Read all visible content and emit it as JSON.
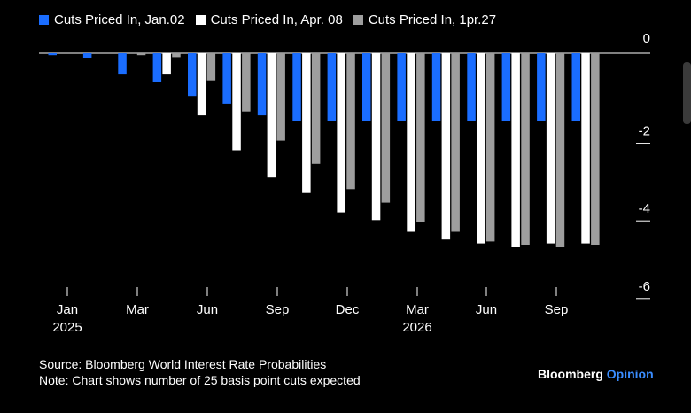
{
  "chart_data": {
    "type": "bar",
    "title": "",
    "xlabel": "",
    "ylabel": "",
    "ylim": [
      -6.2,
      0.4
    ],
    "y_ticks": [
      0,
      -2,
      -4,
      -6
    ],
    "y_tick_labels": [
      "0",
      "-2",
      "-4",
      "-6"
    ],
    "x_tick_labels": [
      {
        "month": "Jan",
        "year": "2025"
      },
      {
        "month": "Mar",
        "year": ""
      },
      {
        "month": "Jun",
        "year": ""
      },
      {
        "month": "Sep",
        "year": ""
      },
      {
        "month": "Dec",
        "year": ""
      },
      {
        "month": "Mar",
        "year": "2026"
      },
      {
        "month": "Jun",
        "year": ""
      },
      {
        "month": "Sep",
        "year": ""
      }
    ],
    "legend_placement": "top-left",
    "grid": false,
    "series": [
      {
        "name": "Cuts Priced In, Jan.02",
        "color": "#1a6dff",
        "values": [
          -0.05,
          -0.12,
          -0.55,
          -0.75,
          -1.1,
          -1.3,
          -1.6,
          -1.75,
          -1.75,
          -1.75,
          -1.75,
          -1.75,
          -1.75,
          -1.75,
          -1.75,
          -1.75
        ]
      },
      {
        "name": "Cuts Priced In, Apr. 08",
        "color": "#ffffff",
        "values": [
          0,
          0,
          0,
          -0.55,
          -1.6,
          -2.5,
          -3.2,
          -3.6,
          -4.1,
          -4.3,
          -4.6,
          -4.8,
          -4.9,
          -5.0,
          -4.9,
          -4.9
        ]
      },
      {
        "name": "Cuts Priced In, 1pr.27",
        "color": "#9e9e9e",
        "values": [
          0,
          0,
          -0.05,
          -0.1,
          -0.7,
          -1.5,
          -2.25,
          -2.85,
          -3.5,
          -3.85,
          -4.35,
          -4.6,
          -4.85,
          -4.95,
          -5.0,
          -4.95
        ]
      }
    ]
  },
  "footer": {
    "source": "Source: Bloomberg World Interest Rate Probabilities",
    "note": "Note: Chart shows number of 25 basis point cuts expected"
  },
  "brand": {
    "name": "Bloomberg",
    "suffix": "Opinion"
  }
}
